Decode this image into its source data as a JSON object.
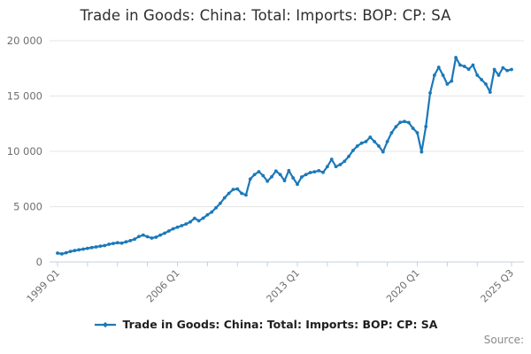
{
  "title": "Trade in Goods: China: Total: Imports: BOP: CP: SA",
  "legend": {
    "label": "Trade in Goods: China: Total: Imports: BOP: CP: SA"
  },
  "source_label": "Source:",
  "colors": {
    "line": "#1b78b9",
    "grid": "#e6e6e6",
    "axis": "#c4d0de",
    "tick_text": "#6e6e6e",
    "title_text": "#2e2e2e",
    "legend_text": "#1f1f1f",
    "source_text": "#8b8b8b"
  },
  "chart_data": {
    "type": "line",
    "x_start": "1999 Q1",
    "x_end": "2025 Q3",
    "frequency": "quarterly",
    "ylim": [
      0,
      20000
    ],
    "grid": true,
    "legend_position": "bottom",
    "y_ticks": [
      {
        "value": 0,
        "label": "0"
      },
      {
        "value": 5000,
        "label": "5 000"
      },
      {
        "value": 10000,
        "label": "10 000"
      },
      {
        "value": 15000,
        "label": "15 000"
      },
      {
        "value": 20000,
        "label": "20 000"
      }
    ],
    "x_ticks": [
      {
        "index": 0,
        "label": "1999 Q1"
      },
      {
        "index": 28,
        "label": "2006 Q1"
      },
      {
        "index": 56,
        "label": "2013 Q1"
      },
      {
        "index": 84,
        "label": "2020 Q1"
      },
      {
        "index": 106,
        "label": "2025 Q3"
      }
    ],
    "minor_tick_indices": [
      0,
      7,
      14,
      21,
      28,
      35,
      42,
      49,
      56,
      63,
      70,
      77,
      84,
      91,
      98,
      106
    ],
    "series": [
      {
        "name": "Trade in Goods: China: Total: Imports: BOP: CP: SA",
        "values": [
          800,
          730,
          830,
          950,
          1030,
          1100,
          1160,
          1230,
          1300,
          1360,
          1430,
          1480,
          1600,
          1670,
          1740,
          1700,
          1820,
          1930,
          2060,
          2300,
          2430,
          2280,
          2160,
          2240,
          2430,
          2600,
          2800,
          3000,
          3140,
          3280,
          3430,
          3620,
          3950,
          3720,
          3960,
          4260,
          4510,
          4900,
          5300,
          5800,
          6200,
          6550,
          6600,
          6200,
          6050,
          7500,
          7900,
          8160,
          7800,
          7300,
          7700,
          8220,
          7900,
          7350,
          8260,
          7600,
          7020,
          7680,
          7900,
          8080,
          8150,
          8250,
          8100,
          8620,
          9280,
          8620,
          8800,
          9100,
          9540,
          10080,
          10480,
          10740,
          10880,
          11280,
          10880,
          10480,
          9950,
          10880,
          11680,
          12220,
          12620,
          12700,
          12600,
          12080,
          11680,
          9950,
          12240,
          15280,
          16880,
          17600,
          16880,
          16080,
          16350,
          18480,
          17800,
          17680,
          17420,
          17800,
          16880,
          16480,
          16080,
          15350,
          17400,
          16880,
          17550,
          17300,
          17400
        ]
      }
    ]
  }
}
